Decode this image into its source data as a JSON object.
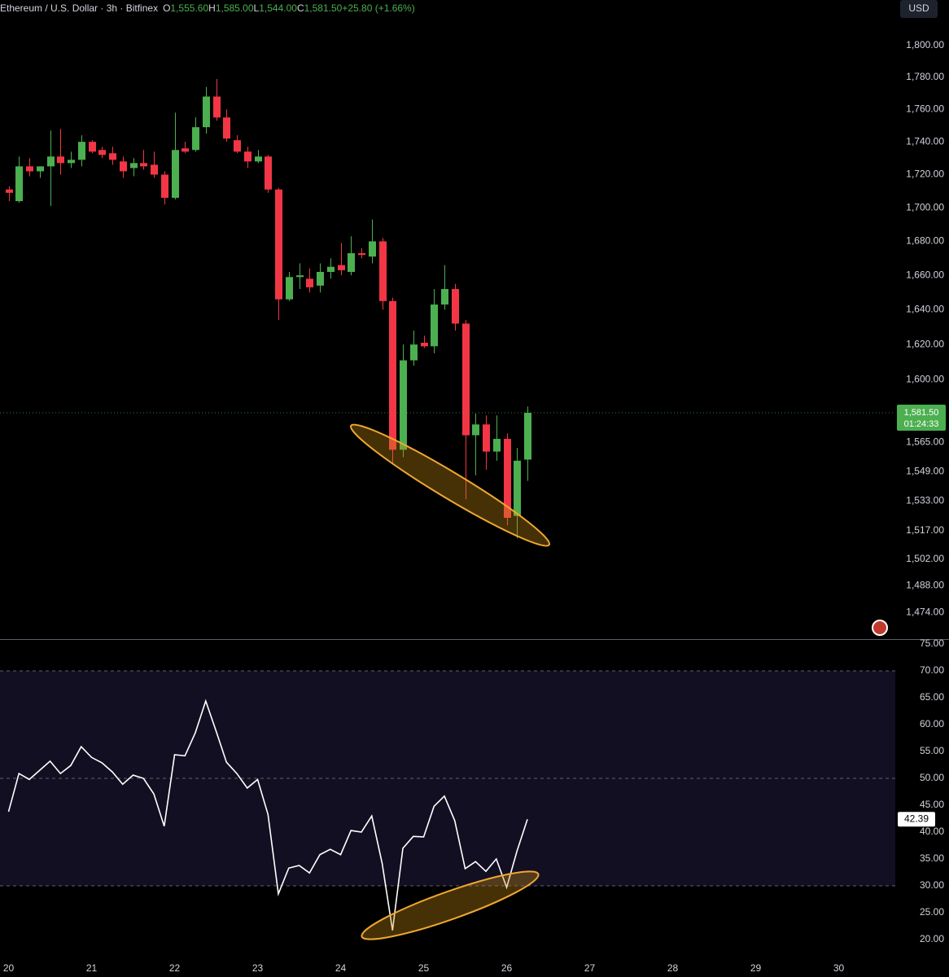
{
  "chart_data": [
    {
      "type": "candlestick",
      "title": "Ethereum / U.S. Dollar · 3h · Bitfinex",
      "ohlc_legend": [
        {
          "key": "O",
          "value": "1,555.60"
        },
        {
          "key": "H",
          "value": "1,585.00"
        },
        {
          "key": "L",
          "value": "1,544.00"
        },
        {
          "key": "C",
          "value": "1,581.50"
        }
      ],
      "change_label": "+25.80 (+1.66%)",
      "currency": "USD",
      "last_label": "1,581.50",
      "countdown": "01:24:33",
      "x": [
        20,
        20.125,
        20.25,
        20.375,
        20.5,
        20.625,
        20.75,
        20.875,
        21,
        21.125,
        21.25,
        21.375,
        21.5,
        21.625,
        21.75,
        21.875,
        22,
        22.125,
        22.25,
        22.375,
        22.5,
        22.625,
        22.75,
        22.875,
        23,
        23.125,
        23.25,
        23.375,
        23.5,
        23.625,
        23.75,
        23.875,
        24,
        24.125,
        24.25,
        24.375,
        24.5,
        24.625,
        24.75,
        24.875,
        25,
        25.125,
        25.25,
        25.375,
        25.5,
        25.625,
        25.75,
        25.875,
        26,
        26.125,
        26.25
      ],
      "open": [
        1711,
        1704,
        1725,
        1722,
        1725,
        1731,
        1727,
        1729,
        1740,
        1735,
        1733,
        1728,
        1724,
        1727,
        1726,
        1720,
        1706,
        1736,
        1735,
        1749,
        1768,
        1755,
        1741,
        1734,
        1728,
        1731,
        1711,
        1646,
        1659,
        1658,
        1654,
        1662,
        1666,
        1662,
        1673,
        1671,
        1680,
        1645,
        1561,
        1611,
        1621,
        1619,
        1643,
        1652,
        1632,
        1569,
        1575,
        1560,
        1567,
        1525,
        1555.6
      ],
      "high": [
        1713,
        1731,
        1730,
        1725,
        1747,
        1748,
        1734,
        1744,
        1741,
        1737,
        1737,
        1731,
        1730,
        1735,
        1734,
        1722,
        1758,
        1740,
        1755,
        1774,
        1779,
        1760,
        1744,
        1737,
        1735,
        1732,
        1712,
        1662,
        1667,
        1664,
        1667,
        1670,
        1679,
        1683,
        1676,
        1693,
        1682,
        1647,
        1620,
        1628,
        1625,
        1652,
        1666,
        1655,
        1634,
        1581,
        1580,
        1580,
        1570,
        1562,
        1585
      ],
      "low": [
        1704,
        1703,
        1719,
        1718,
        1701,
        1720,
        1724,
        1725,
        1733,
        1730,
        1726,
        1718,
        1719,
        1723,
        1718,
        1702,
        1705,
        1733,
        1734,
        1745,
        1753,
        1740,
        1733,
        1724,
        1727,
        1709,
        1634,
        1645,
        1652,
        1650,
        1650,
        1658,
        1660,
        1660,
        1670,
        1667,
        1640,
        1553,
        1557,
        1608,
        1618,
        1615,
        1640,
        1628,
        1534,
        1547,
        1550,
        1555,
        1520,
        1513,
        1544
      ],
      "close": [
        1709,
        1725,
        1722,
        1725,
        1731,
        1727,
        1729,
        1740,
        1734,
        1732,
        1729,
        1722,
        1727,
        1725,
        1720,
        1706,
        1735,
        1734,
        1749,
        1768,
        1755,
        1742,
        1734,
        1728,
        1731,
        1711,
        1646,
        1659,
        1660,
        1653,
        1662,
        1665,
        1663,
        1673,
        1672,
        1680,
        1645,
        1561,
        1611,
        1620,
        1619,
        1643,
        1652,
        1632,
        1569,
        1575,
        1560,
        1567,
        1524,
        1555,
        1581.5
      ],
      "up_color": "#4caf50",
      "down_color": "#f23645",
      "log_scale": true,
      "grid": false,
      "ylim": [
        1460.2,
        1829.2
      ],
      "yticks": [
        {
          "value": 1800,
          "label": "1,800.00"
        },
        {
          "value": 1780,
          "label": "1,780.00"
        },
        {
          "value": 1760,
          "label": "1,760.00"
        },
        {
          "value": 1740,
          "label": "1,740.00"
        },
        {
          "value": 1720,
          "label": "1,720.00"
        },
        {
          "value": 1700,
          "label": "1,700.00"
        },
        {
          "value": 1680,
          "label": "1,680.00"
        },
        {
          "value": 1660,
          "label": "1,660.00"
        },
        {
          "value": 1640,
          "label": "1,640.00"
        },
        {
          "value": 1620,
          "label": "1,620.00"
        },
        {
          "value": 1600,
          "label": "1,600.00"
        },
        {
          "value": 1565,
          "label": "1,565.00"
        },
        {
          "value": 1549,
          "label": "1,549.00"
        },
        {
          "value": 1533,
          "label": "1,533.00"
        },
        {
          "value": 1517,
          "label": "1,517.00"
        },
        {
          "value": 1502,
          "label": "1,502.00"
        },
        {
          "value": 1488,
          "label": "1,488.00"
        },
        {
          "value": 1474,
          "label": "1,474.00"
        }
      ],
      "xlim": [
        19.897,
        30.681
      ],
      "xticks": [
        20,
        21,
        22,
        23,
        24,
        25,
        26,
        27,
        28,
        29,
        30
      ]
    },
    {
      "type": "line",
      "color": "#ffffff",
      "grid": false,
      "x": [
        20,
        20.125,
        20.25,
        20.375,
        20.5,
        20.625,
        20.75,
        20.875,
        21,
        21.125,
        21.25,
        21.375,
        21.5,
        21.625,
        21.75,
        21.875,
        22,
        22.125,
        22.25,
        22.375,
        22.5,
        22.625,
        22.75,
        22.875,
        23,
        23.125,
        23.25,
        23.375,
        23.5,
        23.625,
        23.75,
        23.875,
        24,
        24.125,
        24.25,
        24.375,
        24.5,
        24.625,
        24.75,
        24.875,
        25,
        25.125,
        25.25,
        25.375,
        25.5,
        25.625,
        25.75,
        25.875,
        26,
        26.125,
        26.25
      ],
      "values": [
        43.8,
        50.9,
        49.8,
        51.5,
        53.2,
        50.9,
        52.4,
        55.9,
        53.9,
        52.9,
        51.2,
        48.9,
        50.6,
        50.0,
        47.1,
        41.1,
        54.4,
        54.2,
        58.5,
        64.4,
        58.8,
        53.0,
        50.9,
        48.2,
        49.8,
        43.3,
        28.5,
        33.3,
        33.8,
        32.4,
        35.8,
        36.8,
        35.8,
        40.3,
        40.0,
        43.0,
        34.2,
        21.7,
        37.0,
        39.2,
        39.1,
        44.8,
        46.7,
        42.1,
        33.2,
        34.5,
        32.7,
        35.0,
        29.7,
        36.5,
        42.39
      ],
      "band": [
        30,
        70
      ],
      "band_color": "#130f22",
      "reference_lines": [
        70,
        50,
        30
      ],
      "ylim": [
        16.82,
        75.61
      ],
      "yticks": [
        {
          "value": 75,
          "label": "75.00"
        },
        {
          "value": 70,
          "label": "70.00"
        },
        {
          "value": 65,
          "label": "65.00"
        },
        {
          "value": 60,
          "label": "60.00"
        },
        {
          "value": 55,
          "label": "55.00"
        },
        {
          "value": 50,
          "label": "50.00"
        },
        {
          "value": 45,
          "label": "45.00"
        },
        {
          "value": 40,
          "label": "40.00"
        },
        {
          "value": 35,
          "label": "35.00"
        },
        {
          "value": 30,
          "label": "30.00"
        },
        {
          "value": 25,
          "label": "25.00"
        },
        {
          "value": 20,
          "label": "20.00"
        }
      ],
      "xlim": [
        19.897,
        30.681
      ]
    }
  ]
}
